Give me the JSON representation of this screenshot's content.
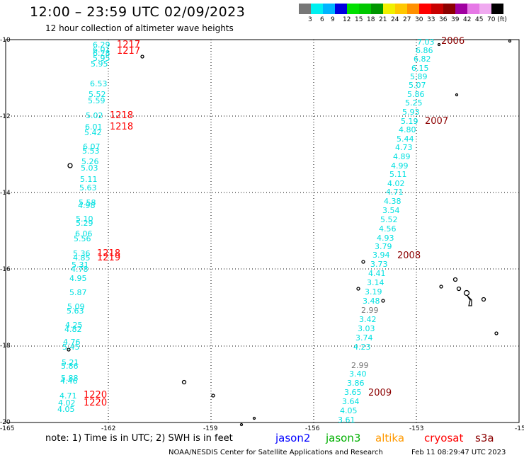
{
  "header": {
    "title": "12:00 – 23:59 UTC 02/09/2023",
    "subtitle": "12 hour collection of altimeter wave heights"
  },
  "legend": {
    "colors": [
      "#777777",
      "#00f0f0",
      "#00b4ff",
      "#0000e0",
      "#00e000",
      "#00c800",
      "#009600",
      "#f0f000",
      "#ffc800",
      "#ff9000",
      "#ff0000",
      "#c80000",
      "#8c0000",
      "#a000a0",
      "#e678e6",
      "#f0aaf0",
      "#000000"
    ],
    "ticks": [
      "3",
      "6",
      "9",
      "12",
      "15",
      "18",
      "21",
      "24",
      "27",
      "30",
      "33",
      "36",
      "39",
      "42",
      "45",
      "70 (ft)"
    ]
  },
  "axes": {
    "lat_labels": [
      "-10",
      "-12",
      "-14",
      "-16",
      "-18",
      "-20"
    ],
    "lon_labels": [
      "-165",
      "-162",
      "-159",
      "-156",
      "-153",
      "-15"
    ]
  },
  "tracks": [
    {
      "labels": [
        {
          "t": "6.29",
          "c": "#00e0e0"
        },
        {
          "t": "6.01",
          "c": "#00e0e0"
        },
        {
          "t": "6.28",
          "c": "#00e0e0"
        },
        {
          "t": "5.95",
          "c": "#00e0e0"
        },
        {
          "t": "5.95",
          "c": "#00e0e0"
        },
        {
          "t": "6.53",
          "c": "#00e0e0"
        },
        {
          "t": "5.52",
          "c": "#00e0e0"
        },
        {
          "t": "5.59",
          "c": "#00e0e0"
        },
        {
          "t": "5.02",
          "c": "#00e0e0"
        },
        {
          "t": "6.01",
          "c": "#00e0e0"
        },
        {
          "t": "5.42",
          "c": "#00e0e0"
        },
        {
          "t": "6.07",
          "c": "#00e0e0"
        },
        {
          "t": "5.53",
          "c": "#00e0e0"
        },
        {
          "t": "5.26",
          "c": "#00e0e0"
        },
        {
          "t": "5.03",
          "c": "#00e0e0"
        },
        {
          "t": "5.11",
          "c": "#00e0e0"
        },
        {
          "t": "5.63",
          "c": "#00e0e0"
        },
        {
          "t": "5.58",
          "c": "#00e0e0"
        },
        {
          "t": "4.98",
          "c": "#00e0e0"
        },
        {
          "t": "5.10",
          "c": "#00e0e0"
        },
        {
          "t": "5.29",
          "c": "#00e0e0"
        },
        {
          "t": "6.06",
          "c": "#00e0e0"
        },
        {
          "t": "5.56",
          "c": "#00e0e0"
        },
        {
          "t": "5.36",
          "c": "#00e0e0"
        },
        {
          "t": "4.85",
          "c": "#00e0e0"
        },
        {
          "t": "5.31",
          "c": "#00e0e0"
        },
        {
          "t": "4.78",
          "c": "#00e0e0"
        },
        {
          "t": "4.95",
          "c": "#00e0e0"
        },
        {
          "t": "5.87",
          "c": "#00e0e0"
        },
        {
          "t": "5.09",
          "c": "#00e0e0"
        },
        {
          "t": "5.63",
          "c": "#00e0e0"
        },
        {
          "t": "4.25",
          "c": "#00e0e0"
        },
        {
          "t": "4.82",
          "c": "#00e0e0"
        },
        {
          "t": "4.76",
          "c": "#00e0e0"
        },
        {
          "t": "5.45",
          "c": "#00e0e0"
        },
        {
          "t": "5.21",
          "c": "#00e0e0"
        },
        {
          "t": "5.86",
          "c": "#00e0e0"
        },
        {
          "t": "5.88",
          "c": "#00e0e0"
        },
        {
          "t": "4.46",
          "c": "#00e0e0"
        },
        {
          "t": "4.71",
          "c": "#00e0e0"
        },
        {
          "t": "4.02",
          "c": "#00e0e0"
        },
        {
          "t": "4.05",
          "c": "#00e0e0"
        }
      ]
    },
    {
      "labels": [
        {
          "t": "7.03",
          "c": "#00e0e0"
        },
        {
          "t": "6.86",
          "c": "#00e0e0"
        },
        {
          "t": "6.82",
          "c": "#00e0e0"
        },
        {
          "t": "6.15",
          "c": "#00e0e0"
        },
        {
          "t": "5.89",
          "c": "#00e0e0"
        },
        {
          "t": "5.07",
          "c": "#00e0e0"
        },
        {
          "t": "5.86",
          "c": "#00e0e0"
        },
        {
          "t": "5.25",
          "c": "#00e0e0"
        },
        {
          "t": "5.93",
          "c": "#00e0e0"
        },
        {
          "t": "5.19",
          "c": "#00e0e0"
        },
        {
          "t": "4.80",
          "c": "#00e0e0"
        },
        {
          "t": "5.44",
          "c": "#00e0e0"
        },
        {
          "t": "4.73",
          "c": "#00e0e0"
        },
        {
          "t": "4.89",
          "c": "#00e0e0"
        },
        {
          "t": "4.99",
          "c": "#00e0e0"
        },
        {
          "t": "5.11",
          "c": "#00e0e0"
        },
        {
          "t": "4.02",
          "c": "#00e0e0"
        },
        {
          "t": "4.71",
          "c": "#00e0e0"
        },
        {
          "t": "4.38",
          "c": "#00e0e0"
        },
        {
          "t": "3.54",
          "c": "#00e0e0"
        },
        {
          "t": "5.52",
          "c": "#00e0e0"
        },
        {
          "t": "4.56",
          "c": "#00e0e0"
        },
        {
          "t": "4.93",
          "c": "#00e0e0"
        },
        {
          "t": "3.79",
          "c": "#00e0e0"
        },
        {
          "t": "3.94",
          "c": "#00e0e0"
        },
        {
          "t": "3.73",
          "c": "#00e0e0"
        },
        {
          "t": "4.41",
          "c": "#00e0e0"
        },
        {
          "t": "3.14",
          "c": "#00e0e0"
        },
        {
          "t": "3.19",
          "c": "#00e0e0"
        },
        {
          "t": "3.48",
          "c": "#00e0e0"
        },
        {
          "t": "2.99",
          "c": "#777777"
        },
        {
          "t": "3.42",
          "c": "#00e0e0"
        },
        {
          "t": "3.03",
          "c": "#00e0e0"
        },
        {
          "t": "3.74",
          "c": "#00e0e0"
        },
        {
          "t": "4.23",
          "c": "#00e0e0"
        },
        {
          "t": "2.99",
          "c": "#777777"
        },
        {
          "t": "3.40",
          "c": "#00e0e0"
        },
        {
          "t": "3.86",
          "c": "#00e0e0"
        },
        {
          "t": "3.65",
          "c": "#00e0e0"
        },
        {
          "t": "3.64",
          "c": "#00e0e0"
        },
        {
          "t": "4.05",
          "c": "#00e0e0"
        },
        {
          "t": "3.61",
          "c": "#00e0e0"
        }
      ]
    }
  ],
  "time_labels": [
    {
      "t": "1217",
      "c": "#ff0000"
    },
    {
      "t": "1217",
      "c": "#ff0000"
    },
    {
      "t": "1218",
      "c": "#ff0000"
    },
    {
      "t": "1218",
      "c": "#ff0000"
    },
    {
      "t": "1218",
      "c": "#ff0000"
    },
    {
      "t": "1219",
      "c": "#ff0000"
    },
    {
      "t": "1220",
      "c": "#ff0000"
    },
    {
      "t": "1220",
      "c": "#ff0000"
    },
    {
      "t": "2006",
      "c": "#8c0000"
    },
    {
      "t": "2007",
      "c": "#8c0000"
    },
    {
      "t": "2008",
      "c": "#8c0000"
    },
    {
      "t": "2009",
      "c": "#8c0000"
    }
  ],
  "note": "note: 1) Time is in UTC; 2) SWH is in feet",
  "satellites": [
    {
      "name": "jason2",
      "color": "#0000ff"
    },
    {
      "name": "jason3",
      "color": "#00b000"
    },
    {
      "name": "altika",
      "color": "#ff9900"
    },
    {
      "name": "cryosat",
      "color": "#ff0000"
    },
    {
      "name": "s3a",
      "color": "#8b0000"
    }
  ],
  "footer": {
    "credit": "NOAA/NESDIS Center for Satellite Applications and Research",
    "timestamp": "Feb 11 08:29:47 UTC 2023"
  }
}
